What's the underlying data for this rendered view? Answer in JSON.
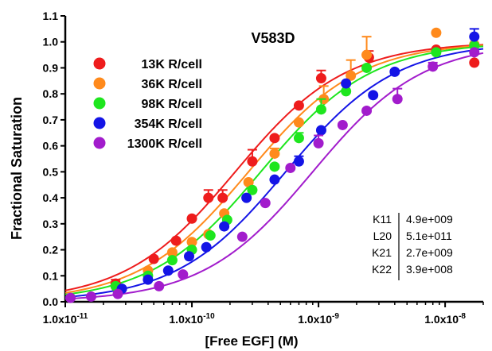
{
  "chart_data": {
    "type": "scatter",
    "title": "V583D",
    "xlabel": "[Free EGF] (M)",
    "ylabel": "Fractional Saturation",
    "x_scale": "log",
    "xlim": [
      1e-11,
      2e-08
    ],
    "ylim": [
      0.0,
      1.1
    ],
    "yticks": [
      "0.0",
      "0.1",
      "0.2",
      "0.3",
      "0.4",
      "0.5",
      "0.6",
      "0.7",
      "0.8",
      "0.9",
      "1.0",
      "1.1"
    ],
    "xticks": [
      {
        "mant": "1.0x10",
        "exp": "-11",
        "value": 1e-11
      },
      {
        "mant": "1.0x10",
        "exp": "-10",
        "value": 1e-10
      },
      {
        "mant": "1.0x10",
        "exp": "-9",
        "value": 1e-09
      },
      {
        "mant": "1.0x10",
        "exp": "-8",
        "value": 1e-08
      }
    ],
    "grid": false,
    "legend_position": "top-left",
    "series": [
      {
        "name": "13K R/cell",
        "color": "#ee1c1c",
        "kd": 2.2e-10,
        "points": [
          {
            "x": 2.5e-11,
            "y": 0.07,
            "err": 0.015
          },
          {
            "x": 5e-11,
            "y": 0.165
          },
          {
            "x": 7.5e-11,
            "y": 0.235
          },
          {
            "x": 1e-10,
            "y": 0.32
          },
          {
            "x": 1.35e-10,
            "y": 0.4,
            "err": 0.03
          },
          {
            "x": 1.75e-10,
            "y": 0.4,
            "err": 0.03
          },
          {
            "x": 3e-10,
            "y": 0.54,
            "err": 0.045
          },
          {
            "x": 4.5e-10,
            "y": 0.63
          },
          {
            "x": 7e-10,
            "y": 0.755
          },
          {
            "x": 1.05e-09,
            "y": 0.86,
            "err": 0.03
          },
          {
            "x": 2.5e-09,
            "y": 0.94,
            "err": 0.025
          },
          {
            "x": 8.5e-09,
            "y": 0.97
          },
          {
            "x": 1.7e-08,
            "y": 0.92
          }
        ]
      },
      {
        "name": "36K R/cell",
        "color": "#ff8a1c",
        "kd": 2.8e-10,
        "points": [
          {
            "x": 2.5e-11,
            "y": 0.06
          },
          {
            "x": 4.5e-11,
            "y": 0.12
          },
          {
            "x": 7e-11,
            "y": 0.19
          },
          {
            "x": 1e-10,
            "y": 0.23
          },
          {
            "x": 1.35e-10,
            "y": 0.26
          },
          {
            "x": 1.8e-10,
            "y": 0.34
          },
          {
            "x": 2.8e-10,
            "y": 0.46
          },
          {
            "x": 4.5e-10,
            "y": 0.57,
            "err": 0.02
          },
          {
            "x": 7e-10,
            "y": 0.69
          },
          {
            "x": 1.1e-09,
            "y": 0.78,
            "err": 0.05
          },
          {
            "x": 1.8e-09,
            "y": 0.87,
            "err": 0.06
          },
          {
            "x": 2.4e-09,
            "y": 0.95,
            "err": 0.07
          },
          {
            "x": 8.5e-09,
            "y": 1.035
          },
          {
            "x": 1.7e-08,
            "y": 0.99
          }
        ]
      },
      {
        "name": "98K R/cell",
        "color": "#1ee61e",
        "kd": 3.5e-10,
        "points": [
          {
            "x": 2.5e-11,
            "y": 0.06
          },
          {
            "x": 4.5e-11,
            "y": 0.1
          },
          {
            "x": 7e-11,
            "y": 0.16
          },
          {
            "x": 1e-10,
            "y": 0.2
          },
          {
            "x": 1.4e-10,
            "y": 0.255
          },
          {
            "x": 1.9e-10,
            "y": 0.315
          },
          {
            "x": 3e-10,
            "y": 0.43
          },
          {
            "x": 4.5e-10,
            "y": 0.52
          },
          {
            "x": 7e-10,
            "y": 0.63,
            "err": 0.02
          },
          {
            "x": 1.05e-09,
            "y": 0.74,
            "err": 0.04
          },
          {
            "x": 1.65e-09,
            "y": 0.81
          },
          {
            "x": 2.4e-09,
            "y": 0.9
          },
          {
            "x": 8.5e-09,
            "y": 0.96
          },
          {
            "x": 1.7e-08,
            "y": 0.985
          }
        ]
      },
      {
        "name": "354K R/cell",
        "color": "#1414e6",
        "kd": 5.5e-10,
        "points": [
          {
            "x": 2.8e-11,
            "y": 0.05
          },
          {
            "x": 4.5e-11,
            "y": 0.085
          },
          {
            "x": 6.5e-11,
            "y": 0.12
          },
          {
            "x": 9.5e-11,
            "y": 0.175
          },
          {
            "x": 1.3e-10,
            "y": 0.21
          },
          {
            "x": 1.8e-10,
            "y": 0.29
          },
          {
            "x": 2.7e-10,
            "y": 0.4
          },
          {
            "x": 4.5e-10,
            "y": 0.47
          },
          {
            "x": 7e-10,
            "y": 0.54,
            "err": 0.02
          },
          {
            "x": 1.05e-09,
            "y": 0.66
          },
          {
            "x": 1.65e-09,
            "y": 0.84
          },
          {
            "x": 2.7e-09,
            "y": 0.795
          },
          {
            "x": 4e-09,
            "y": 0.885
          },
          {
            "x": 1.7e-08,
            "y": 1.02,
            "err": 0.03
          }
        ]
      },
      {
        "name": "1300K R/cell",
        "color": "#a21ccc",
        "kd": 9e-10,
        "points": [
          {
            "x": 1.1e-11,
            "y": 0.015
          },
          {
            "x": 1.6e-11,
            "y": 0.02
          },
          {
            "x": 2.6e-11,
            "y": 0.03
          },
          {
            "x": 5.5e-11,
            "y": 0.06
          },
          {
            "x": 8.5e-11,
            "y": 0.105
          },
          {
            "x": 2.5e-10,
            "y": 0.25
          },
          {
            "x": 3.8e-10,
            "y": 0.38
          },
          {
            "x": 6e-10,
            "y": 0.515
          },
          {
            "x": 1e-09,
            "y": 0.61,
            "err": 0.03
          },
          {
            "x": 1.55e-09,
            "y": 0.68
          },
          {
            "x": 2.4e-09,
            "y": 0.735
          },
          {
            "x": 4.2e-09,
            "y": 0.78,
            "err": 0.04
          },
          {
            "x": 8e-09,
            "y": 0.905,
            "err": 0.015
          },
          {
            "x": 1.7e-08,
            "y": 0.96
          }
        ]
      }
    ],
    "parameters": [
      {
        "name": "K11",
        "value": "4.9e+009"
      },
      {
        "name": "L20",
        "value": "5.1e+011"
      },
      {
        "name": "K21",
        "value": "2.7e+009"
      },
      {
        "name": "K22",
        "value": "3.9e+008"
      }
    ]
  }
}
